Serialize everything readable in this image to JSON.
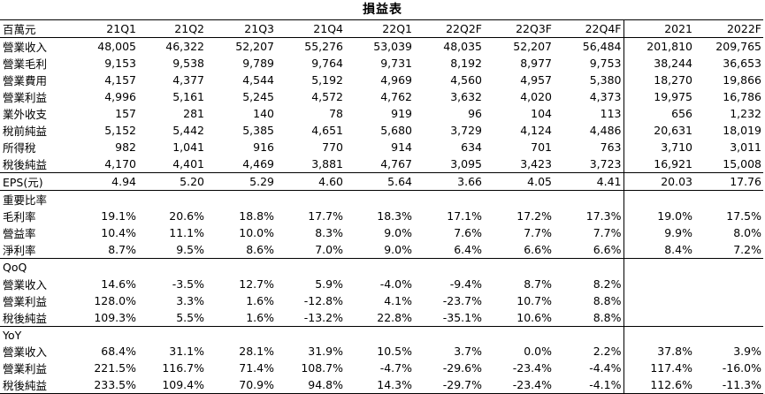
{
  "title": "損益表",
  "header": {
    "label": "百萬元",
    "columns": [
      "21Q1",
      "21Q2",
      "21Q3",
      "21Q4",
      "22Q1",
      "22Q2F",
      "22Q3F",
      "22Q4F",
      "2021",
      "2022F"
    ]
  },
  "income": [
    {
      "label": "營業收入",
      "values": [
        "48,005",
        "46,322",
        "52,207",
        "55,276",
        "53,039",
        "48,035",
        "52,207",
        "56,484",
        "201,810",
        "209,765"
      ]
    },
    {
      "label": "營業毛利",
      "values": [
        "9,153",
        "9,538",
        "9,789",
        "9,764",
        "9,731",
        "8,192",
        "8,977",
        "9,753",
        "38,244",
        "36,653"
      ]
    },
    {
      "label": "營業費用",
      "values": [
        "4,157",
        "4,377",
        "4,544",
        "5,192",
        "4,969",
        "4,560",
        "4,957",
        "5,380",
        "18,270",
        "19,866"
      ]
    },
    {
      "label": "營業利益",
      "values": [
        "4,996",
        "5,161",
        "5,245",
        "4,572",
        "4,762",
        "3,632",
        "4,020",
        "4,373",
        "19,975",
        "16,786"
      ]
    },
    {
      "label": "業外收支",
      "values": [
        "157",
        "281",
        "140",
        "78",
        "919",
        "96",
        "104",
        "113",
        "656",
        "1,232"
      ]
    },
    {
      "label": "稅前純益",
      "values": [
        "5,152",
        "5,442",
        "5,385",
        "4,651",
        "5,680",
        "3,729",
        "4,124",
        "4,486",
        "20,631",
        "18,019"
      ]
    },
    {
      "label": "所得稅",
      "values": [
        "982",
        "1,041",
        "916",
        "770",
        "914",
        "634",
        "701",
        "763",
        "3,710",
        "3,011"
      ]
    },
    {
      "label": "稅後純益",
      "values": [
        "4,170",
        "4,401",
        "4,469",
        "3,881",
        "4,767",
        "3,095",
        "3,423",
        "3,723",
        "16,921",
        "15,008"
      ]
    }
  ],
  "eps": {
    "label": "EPS(元)",
    "values": [
      "4.94",
      "5.20",
      "5.29",
      "4.60",
      "5.64",
      "3.66",
      "4.05",
      "4.41",
      "20.03",
      "17.76"
    ]
  },
  "ratios": {
    "heading": "重要比率",
    "rows": [
      {
        "label": "毛利率",
        "values": [
          "19.1%",
          "20.6%",
          "18.8%",
          "17.7%",
          "18.3%",
          "17.1%",
          "17.2%",
          "17.3%",
          "19.0%",
          "17.5%"
        ]
      },
      {
        "label": "營益率",
        "values": [
          "10.4%",
          "11.1%",
          "10.0%",
          "8.3%",
          "9.0%",
          "7.6%",
          "7.7%",
          "7.7%",
          "9.9%",
          "8.0%"
        ]
      },
      {
        "label": "淨利率",
        "values": [
          "8.7%",
          "9.5%",
          "8.6%",
          "7.0%",
          "9.0%",
          "6.4%",
          "6.6%",
          "6.6%",
          "8.4%",
          "7.2%"
        ]
      }
    ]
  },
  "qoq": {
    "heading": "QoQ",
    "rows": [
      {
        "label": "營業收入",
        "values": [
          "14.6%",
          "-3.5%",
          "12.7%",
          "5.9%",
          "-4.0%",
          "-9.4%",
          "8.7%",
          "8.2%",
          "",
          ""
        ]
      },
      {
        "label": "營業利益",
        "values": [
          "128.0%",
          "3.3%",
          "1.6%",
          "-12.8%",
          "4.1%",
          "-23.7%",
          "10.7%",
          "8.8%",
          "",
          ""
        ]
      },
      {
        "label": "稅後純益",
        "values": [
          "109.3%",
          "5.5%",
          "1.6%",
          "-13.2%",
          "22.8%",
          "-35.1%",
          "10.6%",
          "8.8%",
          "",
          ""
        ]
      }
    ]
  },
  "yoy": {
    "heading": "YoY",
    "rows": [
      {
        "label": "營業收入",
        "values": [
          "68.4%",
          "31.1%",
          "28.1%",
          "31.9%",
          "10.5%",
          "3.7%",
          "0.0%",
          "2.2%",
          "37.8%",
          "3.9%"
        ]
      },
      {
        "label": "營業利益",
        "values": [
          "221.5%",
          "116.7%",
          "71.4%",
          "108.7%",
          "-4.7%",
          "-29.6%",
          "-23.4%",
          "-4.4%",
          "117.4%",
          "-16.0%"
        ]
      },
      {
        "label": "稅後純益",
        "values": [
          "233.5%",
          "109.4%",
          "70.9%",
          "94.8%",
          "14.3%",
          "-29.7%",
          "-23.4%",
          "-4.1%",
          "112.6%",
          "-11.3%"
        ]
      }
    ]
  }
}
